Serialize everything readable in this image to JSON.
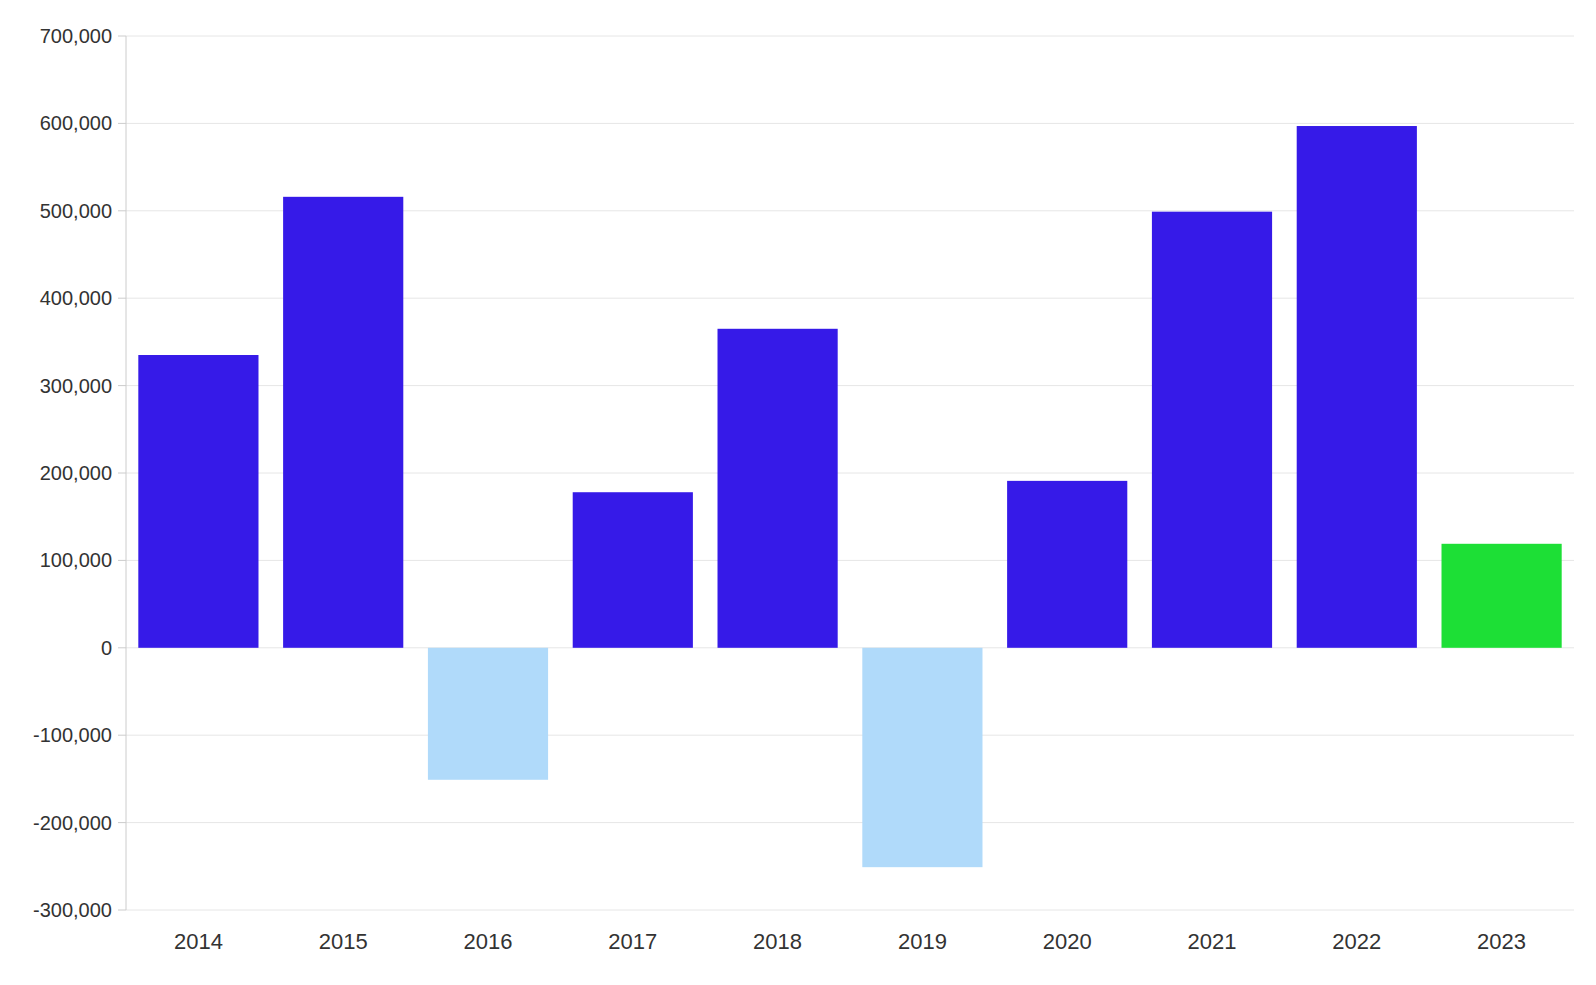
{
  "chart_data": {
    "type": "bar",
    "categories": [
      "2014",
      "2015",
      "2016",
      "2017",
      "2018",
      "2019",
      "2020",
      "2021",
      "2022",
      "2023"
    ],
    "values": [
      335000,
      516000,
      -151000,
      178000,
      365000,
      -251000,
      191000,
      499000,
      597000,
      119000
    ],
    "colors": [
      "#361ae8",
      "#361ae8",
      "#b0dafa",
      "#361ae8",
      "#361ae8",
      "#b0dafa",
      "#361ae8",
      "#361ae8",
      "#361ae8",
      "#1ddf36"
    ],
    "ylim": [
      -300000,
      700000
    ],
    "yticks": [
      {
        "value": -300000,
        "label": "-300,000"
      },
      {
        "value": -200000,
        "label": "-200,000"
      },
      {
        "value": -100000,
        "label": "-100,000"
      },
      0,
      {
        "value": 100000,
        "label": "100,000"
      },
      {
        "value": 200000,
        "label": "200,000"
      },
      {
        "value": 300000,
        "label": "300,000"
      },
      {
        "value": 400000,
        "label": "400,000"
      },
      {
        "value": 500000,
        "label": "500,000"
      },
      {
        "value": 600000,
        "label": "600,000"
      },
      {
        "value": 700000,
        "label": "700,000"
      }
    ],
    "grid": true
  }
}
